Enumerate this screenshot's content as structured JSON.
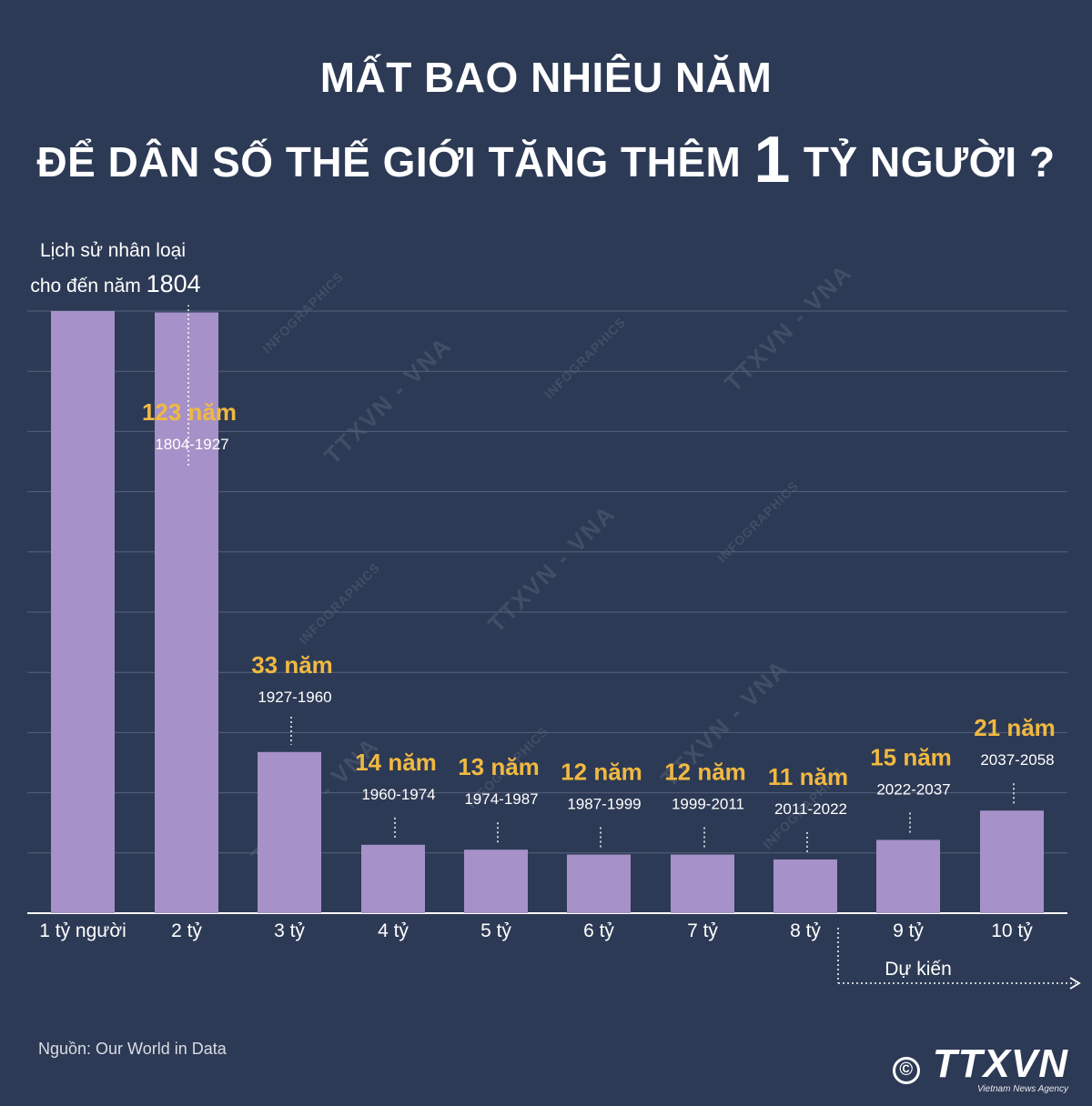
{
  "title": {
    "line1": "MẤT BAO NHIÊU NĂM",
    "line2_before": "ĐỂ DÂN SỐ THẾ GIỚI TĂNG THÊM",
    "line2_big": "1",
    "line2_after": "TỶ NGƯỜI ?"
  },
  "chart_data": {
    "type": "bar",
    "categories": [
      "1 tỷ người",
      "2 tỷ",
      "3 tỷ",
      "4 tỷ",
      "5 tỷ",
      "6 tỷ",
      "7 tỷ",
      "8 tỷ",
      "9 tỷ",
      "10 tỷ"
    ],
    "first_bar_label": {
      "line1": "Lịch sử nhân loại",
      "line2_prefix": "cho đến năm",
      "line2_year": "1804"
    },
    "bars": [
      {
        "category": "1 tỷ người",
        "years": null,
        "duration": "",
        "range": ""
      },
      {
        "category": "2 tỷ",
        "years": 123,
        "duration": "123 năm",
        "range": "1804-1927"
      },
      {
        "category": "3 tỷ",
        "years": 33,
        "duration": "33 năm",
        "range": "1927-1960"
      },
      {
        "category": "4 tỷ",
        "years": 14,
        "duration": "14 năm",
        "range": "1960-1974"
      },
      {
        "category": "5 tỷ",
        "years": 13,
        "duration": "13 năm",
        "range": "1974-1987"
      },
      {
        "category": "6 tỷ",
        "years": 12,
        "duration": "12 năm",
        "range": "1987-1999"
      },
      {
        "category": "7 tỷ",
        "years": 12,
        "duration": "12 năm",
        "range": "1999-2011"
      },
      {
        "category": "8 tỷ",
        "years": 11,
        "duration": "11 năm",
        "range": "2011-2022"
      },
      {
        "category": "9 tỷ",
        "years": 15,
        "duration": "15 năm",
        "range": "2022-2037"
      },
      {
        "category": "10 tỷ",
        "years": 21,
        "duration": "21 năm",
        "range": "2037-2058"
      }
    ],
    "forecast_label": "Dự kiến",
    "grid": true,
    "colors": {
      "bar": "#a691c8",
      "duration": "#f0b941",
      "grid": "#56627c",
      "background": "#2d3a55"
    }
  },
  "watermarks": {
    "infographics": "INFOGRAPHICS",
    "agency": "TTXVN - VNA"
  },
  "footer": {
    "source": "Nguồn: Our World in Data",
    "copyright_symbol": "©",
    "brand": "TTXVN",
    "brand_sub": "Vietnam News Agency"
  }
}
